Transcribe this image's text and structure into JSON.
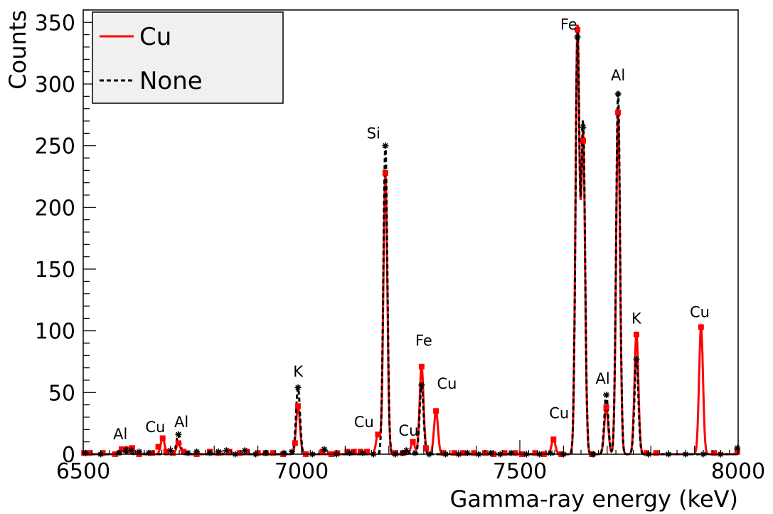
{
  "chart_data": {
    "type": "line",
    "xlabel": "Gamma-ray energy (keV)",
    "ylabel": "Counts",
    "xlim": [
      6500,
      8000
    ],
    "ylim": [
      0,
      360
    ],
    "x_ticks": [
      6500,
      7000,
      7500,
      8000
    ],
    "y_ticks": [
      0,
      50,
      100,
      150,
      200,
      250,
      300,
      350
    ],
    "grid": false,
    "legend_position": "top-left",
    "peak_sigma_keV": 4.5,
    "series": [
      {
        "name": "Cu",
        "color": "#ff0000",
        "line": "solid",
        "marker": "square",
        "peaks": [
          [
            6590,
            4
          ],
          [
            6610,
            5
          ],
          [
            6682,
            13
          ],
          [
            6718,
            9
          ],
          [
            6992,
            39
          ],
          [
            7175,
            16
          ],
          [
            7192,
            228
          ],
          [
            7255,
            10
          ],
          [
            7275,
            71
          ],
          [
            7308,
            35
          ],
          [
            7577,
            12
          ],
          [
            7632,
            344
          ],
          [
            7645,
            254
          ],
          [
            7698,
            38
          ],
          [
            7725,
            277
          ],
          [
            7767,
            97
          ],
          [
            7915,
            103
          ]
        ],
        "markers": [
          [
            6502,
            1
          ],
          [
            6515,
            1
          ],
          [
            6545,
            1
          ],
          [
            6573,
            0
          ],
          [
            6588,
            4
          ],
          [
            6600,
            4
          ],
          [
            6612,
            5
          ],
          [
            6628,
            0
          ],
          [
            6658,
            1
          ],
          [
            6672,
            6
          ],
          [
            6682,
            13
          ],
          [
            6690,
            2
          ],
          [
            6705,
            1
          ],
          [
            6718,
            9
          ],
          [
            6730,
            2
          ],
          [
            6760,
            0
          ],
          [
            6790,
            2
          ],
          [
            6810,
            1
          ],
          [
            6835,
            2
          ],
          [
            6858,
            1
          ],
          [
            6875,
            2
          ],
          [
            6900,
            1
          ],
          [
            6918,
            1
          ],
          [
            6935,
            1
          ],
          [
            6958,
            0
          ],
          [
            6985,
            9
          ],
          [
            6992,
            39
          ],
          [
            7010,
            0
          ],
          [
            7048,
            2
          ],
          [
            7068,
            0
          ],
          [
            7082,
            1
          ],
          [
            7105,
            2
          ],
          [
            7120,
            2
          ],
          [
            7135,
            2
          ],
          [
            7150,
            2
          ],
          [
            7175,
            16
          ],
          [
            7192,
            228
          ],
          [
            7213,
            1
          ],
          [
            7232,
            1
          ],
          [
            7255,
            10
          ],
          [
            7275,
            71
          ],
          [
            7285,
            5
          ],
          [
            7308,
            35
          ],
          [
            7325,
            1
          ],
          [
            7350,
            1
          ],
          [
            7370,
            1
          ],
          [
            7395,
            1
          ],
          [
            7420,
            1
          ],
          [
            7440,
            0
          ],
          [
            7465,
            1
          ],
          [
            7490,
            1
          ],
          [
            7505,
            0
          ],
          [
            7535,
            1
          ],
          [
            7555,
            0
          ],
          [
            7577,
            12
          ],
          [
            7595,
            0
          ],
          [
            7632,
            344
          ],
          [
            7645,
            254
          ],
          [
            7665,
            0
          ],
          [
            7698,
            38
          ],
          [
            7725,
            277
          ],
          [
            7767,
            97
          ],
          [
            7790,
            1
          ],
          [
            7812,
            1
          ],
          [
            7915,
            103
          ],
          [
            7945,
            1
          ],
          [
            7998,
            2
          ]
        ]
      },
      {
        "name": "None",
        "color": "#000000",
        "line": "dashed",
        "marker": "asterisk",
        "peaks": [
          [
            6588,
            2
          ],
          [
            6603,
            3
          ],
          [
            6630,
            2
          ],
          [
            6718,
            16
          ],
          [
            6992,
            54
          ],
          [
            7052,
            4
          ],
          [
            7192,
            250
          ],
          [
            7240,
            3
          ],
          [
            7275,
            56
          ],
          [
            7632,
            338
          ],
          [
            7645,
            265
          ],
          [
            7698,
            48
          ],
          [
            7725,
            292
          ],
          [
            7767,
            77
          ]
        ],
        "markers": [
          [
            6505,
            1
          ],
          [
            6540,
            0
          ],
          [
            6582,
            1
          ],
          [
            6597,
            3
          ],
          [
            6610,
            3
          ],
          [
            6628,
            2
          ],
          [
            6650,
            1
          ],
          [
            6700,
            3
          ],
          [
            6718,
            16
          ],
          [
            6740,
            1
          ],
          [
            6760,
            2
          ],
          [
            6790,
            1
          ],
          [
            6810,
            2
          ],
          [
            6828,
            3
          ],
          [
            6848,
            0
          ],
          [
            6870,
            3
          ],
          [
            6895,
            0
          ],
          [
            6918,
            1
          ],
          [
            6960,
            1
          ],
          [
            6978,
            2
          ],
          [
            6992,
            54
          ],
          [
            7025,
            0
          ],
          [
            7052,
            4
          ],
          [
            7080,
            0
          ],
          [
            7110,
            1
          ],
          [
            7140,
            1
          ],
          [
            7165,
            0
          ],
          [
            7192,
            250
          ],
          [
            7215,
            0
          ],
          [
            7232,
            1
          ],
          [
            7240,
            3
          ],
          [
            7260,
            1
          ],
          [
            7275,
            56
          ],
          [
            7292,
            0
          ],
          [
            7330,
            0
          ],
          [
            7360,
            0
          ],
          [
            7380,
            1
          ],
          [
            7405,
            0
          ],
          [
            7433,
            1
          ],
          [
            7455,
            0
          ],
          [
            7480,
            1
          ],
          [
            7515,
            0
          ],
          [
            7545,
            0
          ],
          [
            7570,
            1
          ],
          [
            7600,
            0
          ],
          [
            7632,
            338
          ],
          [
            7645,
            265
          ],
          [
            7668,
            0
          ],
          [
            7698,
            48
          ],
          [
            7725,
            292
          ],
          [
            7767,
            77
          ],
          [
            7795,
            0
          ],
          [
            7840,
            0
          ],
          [
            7880,
            0
          ],
          [
            7920,
            0
          ],
          [
            7960,
            0
          ],
          [
            7998,
            5
          ]
        ]
      }
    ],
    "annotations": [
      {
        "text": "Al",
        "x": 6585,
        "y": 12
      },
      {
        "text": "Cu",
        "x": 6665,
        "y": 18
      },
      {
        "text": "Al",
        "x": 6725,
        "y": 22
      },
      {
        "text": "K",
        "x": 6992,
        "y": 63
      },
      {
        "text": "Cu",
        "x": 7143,
        "y": 22
      },
      {
        "text": "Si",
        "x": 7165,
        "y": 256
      },
      {
        "text": "Cu",
        "x": 7245,
        "y": 15
      },
      {
        "text": "Fe",
        "x": 7280,
        "y": 88
      },
      {
        "text": "Cu",
        "x": 7333,
        "y": 53
      },
      {
        "text": "Cu",
        "x": 7590,
        "y": 29
      },
      {
        "text": "Fe",
        "x": 7612,
        "y": 344
      },
      {
        "text": "Al",
        "x": 7725,
        "y": 303
      },
      {
        "text": "Al",
        "x": 7690,
        "y": 57
      },
      {
        "text": "K",
        "x": 7767,
        "y": 106
      },
      {
        "text": "Cu",
        "x": 7912,
        "y": 111
      }
    ]
  }
}
